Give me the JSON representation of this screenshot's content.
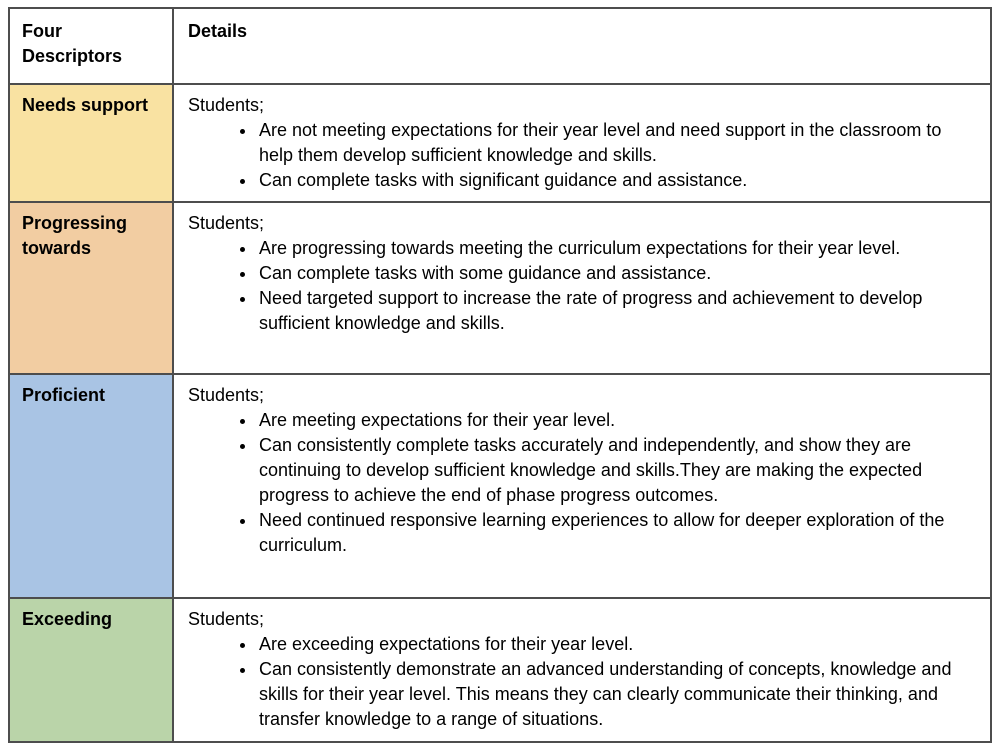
{
  "table": {
    "header": {
      "descriptors_label": "Four Descriptors",
      "details_label": "Details"
    },
    "rows": [
      {
        "descriptor": "Needs support",
        "color": "#F9E2A2",
        "intro": "Students;",
        "bullets": [
          "Are not meeting expectations for their year level and need support in the classroom to help them develop sufficient knowledge and skills.",
          "Can complete tasks with significant guidance and assistance."
        ]
      },
      {
        "descriptor": "Progressing towards",
        "color": "#F2CDA2",
        "intro": "Students;",
        "bullets": [
          "Are progressing towards meeting the curriculum expectations for their year level.",
          "Can complete tasks with some guidance and assistance.",
          "Need targeted support to increase the rate of progress and achievement to develop sufficient knowledge and skills."
        ]
      },
      {
        "descriptor": "Proficient",
        "color": "#A9C4E4",
        "intro": "Students;",
        "bullets": [
          "Are meeting expectations for their year level.",
          "Can consistently complete tasks accurately and independently, and show they are continuing to develop sufficient knowledge and skills.They are making the expected progress to achieve the end of phase progress outcomes.",
          "Need continued responsive learning experiences to allow for deeper exploration of the curriculum."
        ]
      },
      {
        "descriptor": "Exceeding",
        "color": "#BAD4A9",
        "intro": "Students;",
        "bullets": [
          "Are exceeding expectations for their year level.",
          "Can consistently demonstrate an advanced understanding of concepts, knowledge and skills for their year level. This means they can clearly communicate their thinking, and transfer knowledge to a range of situations."
        ]
      }
    ]
  }
}
